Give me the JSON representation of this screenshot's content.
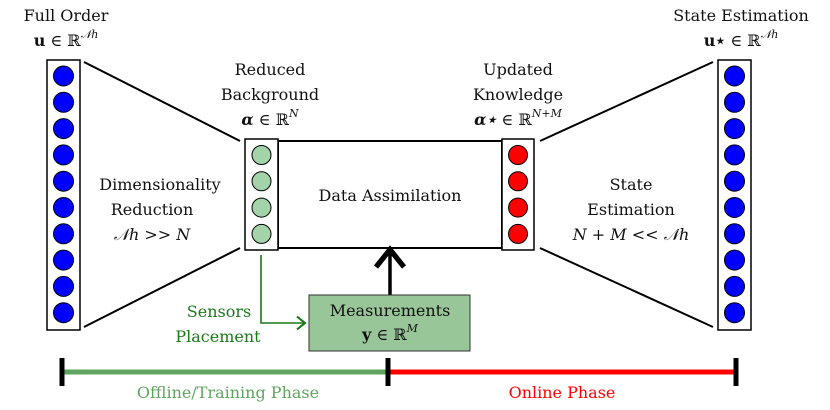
{
  "colors": {
    "full_order_nodes": "#0000ff",
    "reduced_nodes": "#a3d3a8",
    "updated_nodes": "#ff0000",
    "measurements_fill": "#99c699",
    "sensors": "#1a7a1a",
    "offline": "#5fa55f",
    "online": "#ff0000"
  },
  "full_order": {
    "title": "Full Order",
    "symbol": "u",
    "in": "∈",
    "set": "ℝ",
    "sup": "𝒩h"
  },
  "reduced": {
    "line1": "Reduced",
    "line2": "Background",
    "symbol": "α",
    "in": "∈",
    "set": "ℝ",
    "sup": "N"
  },
  "updated": {
    "line1": "Updated",
    "line2": "Knowledge",
    "symbol": "α⋆",
    "in": "∈",
    "set": "ℝ",
    "sup": "N+M"
  },
  "state_top": {
    "title": "State Estimation",
    "symbol": "u⋆",
    "in": "∈",
    "set": "ℝ",
    "sup": "𝒩h"
  },
  "dim_reduction": {
    "line1": "Dimensionality",
    "line2": "Reduction",
    "line3": "𝒩h >> N"
  },
  "data_assimilation": {
    "label": "Data Assimilation"
  },
  "state_estimation": {
    "line1": "State",
    "line2": "Estimation",
    "line3": "N + M << 𝒩h"
  },
  "measurements": {
    "label": "Measurements",
    "symbol": "y",
    "in": "∈",
    "set": "ℝ",
    "sup": "M"
  },
  "sensors": {
    "line1": "Sensors",
    "line2": "Placement"
  },
  "phases": {
    "offline": "Offline/Training Phase",
    "online": "Online Phase"
  }
}
